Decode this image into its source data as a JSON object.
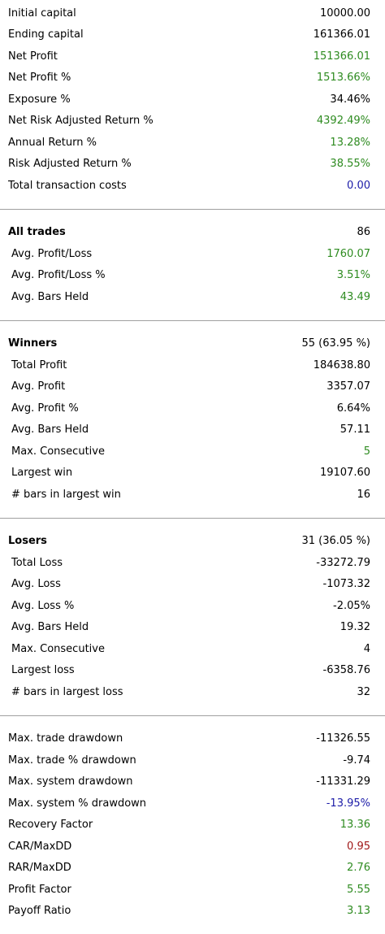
{
  "sections": [
    {
      "rows": [
        {
          "label": "Initial capital",
          "value": "10000.00",
          "color": "#000000"
        },
        {
          "label": "Ending capital",
          "value": "161366.01",
          "color": "#000000"
        },
        {
          "label": "Net Profit",
          "value": "151366.01",
          "color": "#2e8b20"
        },
        {
          "label": "Net Profit %",
          "value": "1513.66%",
          "color": "#2e8b20"
        },
        {
          "label": "Exposure %",
          "value": "34.46%",
          "color": "#000000"
        },
        {
          "label": "Net Risk Adjusted Return %",
          "value": "4392.49%",
          "color": "#2e8b20"
        },
        {
          "label": "Annual Return %",
          "value": "13.28%",
          "color": "#2e8b20"
        },
        {
          "label": "Risk Adjusted Return %",
          "value": "38.55%",
          "color": "#2e8b20"
        },
        {
          "label": "Total transaction costs",
          "value": "0.00",
          "color": "#1c1ca8"
        }
      ]
    },
    {
      "header": {
        "label": "All trades",
        "value": "86",
        "color": "#000000"
      },
      "rows": [
        {
          "label": "Avg. Profit/Loss",
          "value": "1760.07",
          "color": "#2e8b20"
        },
        {
          "label": "Avg. Profit/Loss %",
          "value": "3.51%",
          "color": "#2e8b20"
        },
        {
          "label": "Avg. Bars Held",
          "value": "43.49",
          "color": "#2e8b20"
        }
      ]
    },
    {
      "header": {
        "label": "Winners",
        "value": "55 (63.95 %)",
        "color": "#000000"
      },
      "rows": [
        {
          "label": "Total Profit",
          "value": "184638.80",
          "color": "#000000"
        },
        {
          "label": "Avg. Profit",
          "value": "3357.07",
          "color": "#000000"
        },
        {
          "label": "Avg. Profit %",
          "value": "6.64%",
          "color": "#000000"
        },
        {
          "label": "Avg. Bars Held",
          "value": "57.11",
          "color": "#000000"
        },
        {
          "label": "Max. Consecutive",
          "value": "5",
          "color": "#2e8b20"
        },
        {
          "label": "Largest win",
          "value": "19107.60",
          "color": "#000000"
        },
        {
          "label": "# bars in largest win",
          "value": "16",
          "color": "#000000"
        }
      ]
    },
    {
      "header": {
        "label": "Losers",
        "value": "31 (36.05 %)",
        "color": "#000000"
      },
      "rows": [
        {
          "label": "Total Loss",
          "value": "-33272.79",
          "color": "#000000"
        },
        {
          "label": "Avg. Loss",
          "value": "-1073.32",
          "color": "#000000"
        },
        {
          "label": "Avg. Loss %",
          "value": "-2.05%",
          "color": "#000000"
        },
        {
          "label": "Avg. Bars Held",
          "value": "19.32",
          "color": "#000000"
        },
        {
          "label": "Max. Consecutive",
          "value": "4",
          "color": "#000000"
        },
        {
          "label": "Largest loss",
          "value": "-6358.76",
          "color": "#000000"
        },
        {
          "label": "# bars in largest loss",
          "value": "32",
          "color": "#000000"
        }
      ]
    },
    {
      "rows": [
        {
          "label": "Max. trade drawdown",
          "value": "-11326.55",
          "color": "#000000"
        },
        {
          "label": "Max. trade % drawdown",
          "value": "-9.74",
          "color": "#000000"
        },
        {
          "label": "Max. system drawdown",
          "value": "-11331.29",
          "color": "#000000"
        },
        {
          "label": "Max. system % drawdown",
          "value": "-13.95%",
          "color": "#1c1ca8"
        },
        {
          "label": "Recovery Factor",
          "value": "13.36",
          "color": "#2e8b20"
        },
        {
          "label": "CAR/MaxDD",
          "value": "0.95",
          "color": "#a01818"
        },
        {
          "label": "RAR/MaxDD",
          "value": "2.76",
          "color": "#2e8b20"
        },
        {
          "label": "Profit Factor",
          "value": "5.55",
          "color": "#2e8b20"
        },
        {
          "label": "Payoff Ratio",
          "value": "3.13",
          "color": "#2e8b20"
        }
      ]
    }
  ]
}
